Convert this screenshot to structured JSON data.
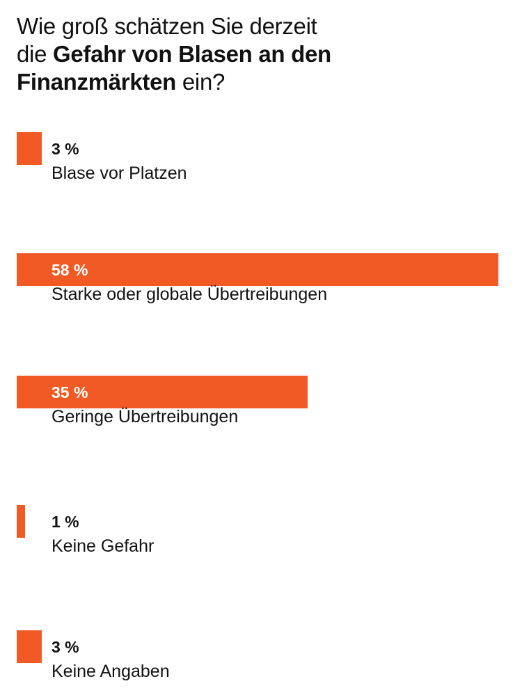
{
  "chart_data": {
    "type": "bar",
    "title_parts": [
      {
        "text": "Wie groß schätzen Sie derzeit",
        "bold": false
      },
      {
        "text": "die ",
        "bold": false,
        "newline": true
      },
      {
        "text": "Gefahr von Blasen an den",
        "bold": true
      },
      {
        "text": "Finanzmärkten",
        "bold": true,
        "newline": true
      },
      {
        "text": " ein?",
        "bold": false
      }
    ],
    "categories": [
      "Blase vor Platzen",
      "Starke oder globale Übertreibungen",
      "Geringe Übertreibungen",
      "Keine Gefahr",
      "Keine Angaben"
    ],
    "values": [
      3,
      58,
      35,
      1,
      3
    ],
    "value_labels": [
      "3 %",
      "58 %",
      "35 %",
      "1 %",
      "3 %"
    ],
    "unit": "%",
    "xlim": [
      0,
      58
    ],
    "bar_color": "#F15A24",
    "grid": false,
    "legend": "none"
  }
}
